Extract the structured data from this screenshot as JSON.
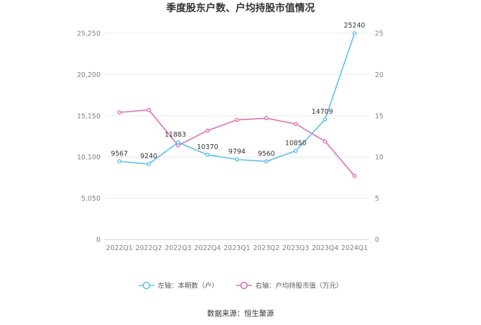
{
  "chart_data": {
    "type": "line",
    "title": "季度股东户数、户均持股市值情况",
    "categories": [
      "2022Q1",
      "2022Q2",
      "2022Q3",
      "2022Q4",
      "2023Q1",
      "2023Q2",
      "2023Q3",
      "2023Q4",
      "2024Q1"
    ],
    "series": [
      {
        "name": "左轴：本期数（户）",
        "axis": "left",
        "color": "#5bc0eb",
        "values": [
          9567,
          9240,
          11883,
          10370,
          9794,
          9560,
          10850,
          14709,
          25240
        ],
        "labels": [
          "9567",
          "9240",
          "11883",
          "10370",
          "9794",
          "9560",
          "10850",
          "14709",
          "25240"
        ]
      },
      {
        "name": "右轴：户均持股市值（万元）",
        "axis": "right",
        "color": "#e06fae",
        "values": [
          15.4,
          15.7,
          11.4,
          13.2,
          14.5,
          14.7,
          14.0,
          11.9,
          7.7
        ]
      }
    ],
    "left_axis": {
      "ylim": [
        0,
        25250
      ],
      "ticks": [
        0,
        5050,
        10100,
        15150,
        20200,
        25250
      ],
      "tick_labels": [
        "0",
        "5,050",
        "10,100",
        "15,150",
        "20,200",
        "25,250"
      ]
    },
    "right_axis": {
      "ylim": [
        0,
        25
      ],
      "ticks": [
        0,
        5,
        10,
        15,
        20,
        25
      ],
      "tick_labels": [
        "0",
        "5",
        "10",
        "15",
        "20",
        "25"
      ]
    },
    "grid": true,
    "legend_position": "bottom"
  },
  "source_text": "数据来源：恒生聚源"
}
